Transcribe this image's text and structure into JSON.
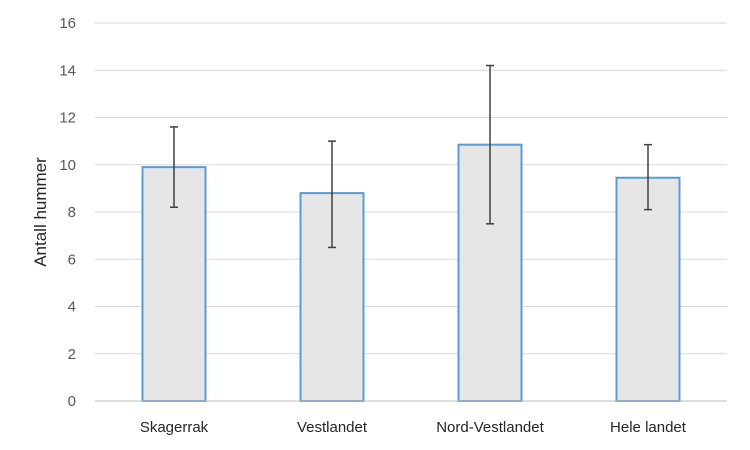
{
  "chart_data": {
    "type": "bar",
    "title": "",
    "xlabel": "",
    "ylabel": "Antall hummer",
    "ylim": [
      0,
      16
    ],
    "yticks": [
      0,
      2,
      4,
      6,
      8,
      10,
      12,
      14,
      16
    ],
    "grid": true,
    "legend": "none",
    "categories": [
      "Skagerrak",
      "Vestlandet",
      "Nord-Vestlandet",
      "Hele landet"
    ],
    "series": [
      {
        "values": [
          9.9,
          8.8,
          10.85,
          9.45
        ],
        "error_low": [
          8.2,
          6.5,
          7.5,
          8.1
        ],
        "error_high": [
          11.6,
          11.0,
          14.2,
          10.85
        ]
      }
    ],
    "colors": {
      "bar_fill": "#e6e6e6",
      "bar_stroke": "#5b9bd5",
      "error_bar": "#404040",
      "grid": "#d9d9d9",
      "axis": "#bfbfbf"
    }
  }
}
